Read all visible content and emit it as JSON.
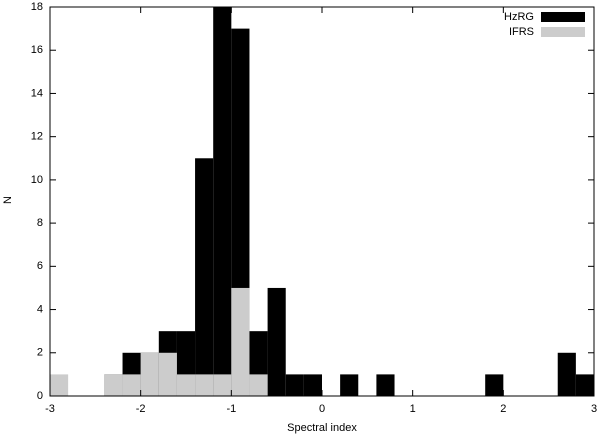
{
  "chart_data": {
    "type": "histogram",
    "xlabel": "Spectral index",
    "ylabel": "N",
    "bins": [
      -3,
      -2.8,
      -2.6,
      -2.4,
      -2.2,
      -2,
      -1.8,
      -1.6,
      -1.4,
      -1.2,
      -1,
      -0.8,
      -0.6,
      -0.4,
      -0.2,
      0,
      0.2,
      0.4,
      0.6,
      0.8,
      1,
      1.2,
      1.4,
      1.6,
      1.8,
      2,
      2.2,
      2.4,
      2.6,
      2.8,
      3
    ],
    "series": [
      {
        "name": "HzRG",
        "color": "#000000",
        "values": [
          0,
          0,
          0,
          1,
          2,
          2,
          3,
          3,
          11,
          18,
          17,
          3,
          5,
          1,
          1,
          0,
          1,
          0,
          1,
          0,
          0,
          0,
          0,
          0,
          1,
          0,
          0,
          0,
          2,
          1
        ]
      },
      {
        "name": "IFRS",
        "color": "#cccccc",
        "values": [
          1,
          0,
          0,
          1,
          1,
          2,
          2,
          1,
          1,
          1,
          5,
          1,
          0,
          0,
          0,
          0,
          0,
          0,
          0,
          0,
          0,
          0,
          0,
          0,
          0,
          0,
          0,
          0,
          0,
          0
        ]
      }
    ],
    "xlim": [
      -3,
      3
    ],
    "ylim": [
      0,
      18
    ],
    "xticks": [
      -3,
      -2,
      -1,
      0,
      1,
      2,
      3
    ],
    "yticks": [
      0,
      2,
      4,
      6,
      8,
      10,
      12,
      14,
      16,
      18
    ],
    "legend": "upper right"
  }
}
